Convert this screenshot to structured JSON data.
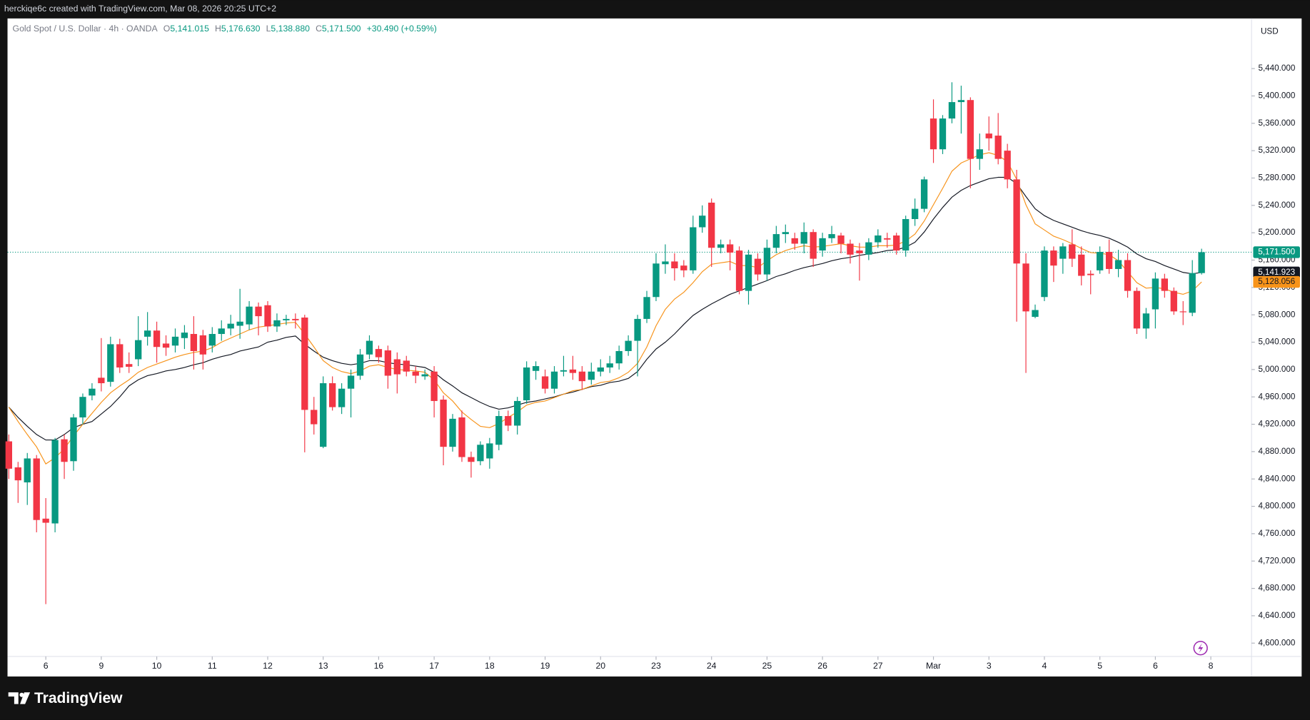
{
  "header": {
    "caption": "herckiqe6c created with TradingView.com, Mar 08, 2026 20:25 UTC+2"
  },
  "footer": {
    "brand": "TradingView"
  },
  "chart_data": {
    "type": "candlestick",
    "title": "Gold Spot / U.S. Dollar · 4h · OANDA",
    "quote": [
      {
        "key": "O",
        "value": "5,141.015"
      },
      {
        "key": "H",
        "value": "5,176.630"
      },
      {
        "key": "L",
        "value": "5,138.880"
      },
      {
        "key": "C",
        "value": "5,171.500"
      }
    ],
    "change": "+30.490 (+0.59%)",
    "currency": "USD",
    "up_color": "#089981",
    "down_color": "#f23645",
    "open": [
      4895,
      4857,
      4835,
      4870,
      4782,
      4775,
      4898,
      4866,
      4930,
      4962,
      4988,
      4982,
      5037,
      5008,
      5015,
      5048,
      5057,
      5038,
      5035,
      5046,
      5052,
      5050,
      5035,
      5052,
      5060,
      5064,
      5066,
      5092,
      5094,
      5063,
      5072,
      5074,
      5076,
      4941,
      4887,
      4980,
      4945,
      4972,
      4991,
      5022,
      5030,
      5028,
      5015,
      5013,
      4997,
      4990,
      4997,
      4956,
      4887,
      4930,
      4872,
      4866,
      4870,
      4890,
      4932,
      4918,
      4955,
      4998,
      4990,
      4972,
      4997,
      5000,
      4997,
      4985,
      4997,
      5003,
      5009,
      5027,
      5042,
      5074,
      5106,
      5154,
      5158,
      5152,
      5145,
      5208,
      5244,
      5178,
      5183,
      5174,
      5115,
      5162,
      5139,
      5178,
      5198,
      5192,
      5184,
      5201,
      5174,
      5192,
      5196,
      5184,
      5174,
      5168,
      5186,
      5192,
      5196,
      5174,
      5220,
      5235,
      5367,
      5322,
      5367,
      5391,
      5394,
      5308,
      5345,
      5342,
      5320,
      5278,
      5155,
      5077,
      5106,
      5174,
      5162,
      5183,
      5168,
      5140,
      5145,
      5172,
      5147,
      5160,
      5115,
      5060,
      5088,
      5133,
      5115,
      5085,
      5083,
      5141.015
    ],
    "high": [
      4905,
      4865,
      4878,
      4875,
      4812,
      4900,
      4905,
      4935,
      4965,
      4980,
      5046,
      5048,
      5045,
      5025,
      5078,
      5084,
      5070,
      5050,
      5060,
      5065,
      5078,
      5058,
      5062,
      5072,
      5080,
      5118,
      5100,
      5098,
      5100,
      5082,
      5080,
      5082,
      5080,
      4960,
      4990,
      4990,
      4980,
      5000,
      5030,
      5050,
      5035,
      5035,
      5025,
      5020,
      5005,
      5000,
      5005,
      4962,
      4935,
      4940,
      4880,
      4895,
      4900,
      4940,
      4940,
      4960,
      5012,
      5012,
      5000,
      5005,
      5020,
      5020,
      5005,
      5010,
      5015,
      5020,
      5035,
      5050,
      5080,
      5115,
      5170,
      5183,
      5170,
      5160,
      5225,
      5240,
      5250,
      5190,
      5190,
      5180,
      5175,
      5170,
      5190,
      5210,
      5212,
      5200,
      5215,
      5205,
      5200,
      5210,
      5200,
      5190,
      5185,
      5192,
      5205,
      5200,
      5200,
      5225,
      5250,
      5282,
      5395,
      5372,
      5420,
      5415,
      5398,
      5345,
      5370,
      5375,
      5330,
      5292,
      5170,
      5095,
      5180,
      5180,
      5185,
      5205,
      5180,
      5145,
      5180,
      5190,
      5175,
      5170,
      5120,
      5090,
      5142,
      5140,
      5120,
      5100,
      5160,
      5176.63
    ],
    "low": [
      4840,
      4805,
      4802,
      4762,
      4657,
      4762,
      4840,
      4852,
      4920,
      4955,
      4968,
      4975,
      4995,
      4995,
      5005,
      5035,
      5010,
      5020,
      5025,
      5030,
      5000,
      5000,
      5025,
      5042,
      5050,
      5045,
      5058,
      5050,
      5055,
      5055,
      5065,
      5060,
      4879,
      4905,
      4885,
      4940,
      4935,
      4930,
      4985,
      5015,
      5010,
      4972,
      4965,
      4990,
      4980,
      4985,
      4930,
      4860,
      4880,
      4865,
      4842,
      4860,
      4855,
      4882,
      4910,
      4905,
      4950,
      4985,
      4965,
      4965,
      4990,
      4985,
      4970,
      4978,
      4990,
      4995,
      5000,
      5020,
      4990,
      5068,
      5100,
      5140,
      5130,
      5135,
      5140,
      5200,
      5150,
      5170,
      5145,
      5110,
      5095,
      5130,
      5130,
      5170,
      5185,
      5175,
      5170,
      5150,
      5165,
      5185,
      5170,
      5155,
      5130,
      5160,
      5178,
      5178,
      5168,
      5165,
      5210,
      5230,
      5302,
      5315,
      5360,
      5345,
      5265,
      5292,
      5320,
      5300,
      5265,
      5070,
      4995,
      5075,
      5100,
      5128,
      5140,
      5150,
      5123,
      5110,
      5140,
      5140,
      5135,
      5105,
      5052,
      5045,
      5060,
      5105,
      5080,
      5065,
      5078,
      5138.88
    ],
    "close": [
      4855,
      4838,
      4870,
      4780,
      4776,
      4897,
      4865,
      4930,
      4960,
      4972,
      4980,
      5037,
      5003,
      5004,
      5043,
      5057,
      5033,
      5032,
      5048,
      5054,
      5027,
      5022,
      5052,
      5060,
      5067,
      5070,
      5092,
      5078,
      5063,
      5072,
      5074,
      5072,
      4941,
      4920,
      4980,
      4945,
      4972,
      4991,
      5022,
      5042,
      5018,
      4991,
      4993,
      4997,
      4991,
      4993,
      4954,
      4887,
      4928,
      4872,
      4865,
      4890,
      4892,
      4932,
      4918,
      4954,
      5003,
      5005,
      4972,
      4997,
      4999,
      4995,
      4983,
      4997,
      5003,
      5009,
      5027,
      5042,
      5074,
      5106,
      5155,
      5158,
      5148,
      5145,
      5208,
      5225,
      5178,
      5183,
      5171,
      5115,
      5168,
      5139,
      5178,
      5198,
      5201,
      5184,
      5201,
      5162,
      5192,
      5198,
      5184,
      5168,
      5170,
      5186,
      5196,
      5190,
      5174,
      5220,
      5235,
      5278,
      5322,
      5367,
      5391,
      5394,
      5308,
      5322,
      5338,
      5308,
      5278,
      5155,
      5085,
      5087,
      5174,
      5152,
      5180,
      5162,
      5137,
      5138,
      5172,
      5147,
      5160,
      5115,
      5060,
      5082,
      5133,
      5115,
      5085,
      5084,
      5141,
      5171.5
    ],
    "close_label": "5,171.500",
    "lines": [
      {
        "color": "#131722",
        "last_label": "5,141.923",
        "values": [
          4945,
          4930,
          4917,
          4905,
          4897,
          4897,
          4905,
          4915,
          4920,
          4924,
          4935,
          4946,
          4960,
          4976,
          4985,
          4991,
          4994,
          4998,
          5000,
          5003,
          5007,
          5010,
          5015,
          5019,
          5022,
          5027,
          5030,
          5033,
          5040,
          5043,
          5047,
          5049,
          5037,
          5027,
          5018,
          5013,
          5009,
          5007,
          5009,
          5013,
          5013,
          5010,
          5008,
          5007,
          5005,
          5003,
          4996,
          4985,
          4976,
          4966,
          4959,
          4952,
          4946,
          4942,
          4944,
          4948,
          4952,
          4954,
          4957,
          4960,
          4964,
          4967,
          4971,
          4975,
          4977,
          4981,
          4983,
          4987,
          4997,
          5015,
          5030,
          5040,
          5052,
          5066,
          5079,
          5088,
          5096,
          5103,
          5110,
          5115,
          5120,
          5125,
          5130,
          5136,
          5140,
          5145,
          5149,
          5152,
          5155,
          5159,
          5162,
          5164,
          5167,
          5169,
          5171,
          5174,
          5175,
          5179,
          5186,
          5201,
          5220,
          5237,
          5252,
          5262,
          5269,
          5274,
          5279,
          5281,
          5281,
          5272,
          5253,
          5235,
          5225,
          5218,
          5213,
          5208,
          5203,
          5199,
          5196,
          5192,
          5186,
          5179,
          5169,
          5162,
          5158,
          5152,
          5147,
          5142,
          5140,
          5141.923
        ]
      },
      {
        "color": "#f7931a",
        "last_label": "5,128.056",
        "values": [
          4945,
          4924,
          4905,
          4887,
          4862,
          4871,
          4884,
          4903,
          4920,
          4936,
          4952,
          4966,
          4976,
          4985,
          4996,
          5003,
          5008,
          5013,
          5018,
          5022,
          5025,
          5027,
          5032,
          5040,
          5046,
          5052,
          5058,
          5062,
          5064,
          5066,
          5068,
          5069,
          5052,
          5033,
          5013,
          5003,
          4997,
          4994,
          4998,
          5005,
          5007,
          5003,
          5000,
          4999,
          4998,
          4996,
          4985,
          4966,
          4954,
          4938,
          4927,
          4917,
          4915,
          4921,
          4930,
          4938,
          4948,
          4952,
          4954,
          4959,
          4964,
          4969,
          4971,
          4976,
          4981,
          4983,
          4988,
          4996,
          5009,
          5033,
          5064,
          5088,
          5103,
          5113,
          5127,
          5143,
          5154,
          5156,
          5158,
          5152,
          5152,
          5149,
          5159,
          5168,
          5174,
          5178,
          5181,
          5179,
          5180,
          5182,
          5184,
          5181,
          5179,
          5179,
          5181,
          5181,
          5182,
          5188,
          5198,
          5217,
          5241,
          5265,
          5290,
          5302,
          5308,
          5314,
          5317,
          5313,
          5304,
          5278,
          5241,
          5213,
          5204,
          5195,
          5190,
          5184,
          5177,
          5171,
          5170,
          5168,
          5159,
          5143,
          5127,
          5119,
          5120,
          5118,
          5113,
          5110,
          5115,
          5128.056
        ]
      }
    ],
    "xlim": [
      -0.14,
      134.4
    ],
    "xticks": [
      {
        "value": 4,
        "label": "6"
      },
      {
        "value": 10,
        "label": "9"
      },
      {
        "value": 16,
        "label": "10"
      },
      {
        "value": 22,
        "label": "11"
      },
      {
        "value": 28,
        "label": "12"
      },
      {
        "value": 34,
        "label": "13"
      },
      {
        "value": 40,
        "label": "16"
      },
      {
        "value": 46,
        "label": "17"
      },
      {
        "value": 52,
        "label": "18"
      },
      {
        "value": 58,
        "label": "19"
      },
      {
        "value": 64,
        "label": "20"
      },
      {
        "value": 70,
        "label": "23"
      },
      {
        "value": 76,
        "label": "24"
      },
      {
        "value": 82,
        "label": "25"
      },
      {
        "value": 88,
        "label": "26"
      },
      {
        "value": 94,
        "label": "27"
      },
      {
        "value": 100,
        "label": "Mar"
      },
      {
        "value": 106,
        "label": "3"
      },
      {
        "value": 112,
        "label": "4"
      },
      {
        "value": 118,
        "label": "5"
      },
      {
        "value": 124,
        "label": "6"
      },
      {
        "value": 130,
        "label": "8"
      }
    ],
    "ylim": [
      4551.2,
      5513.3
    ],
    "yticks": [
      {
        "value": 4600,
        "label": "4,600.000"
      },
      {
        "value": 4640,
        "label": "4,640.000"
      },
      {
        "value": 4680,
        "label": "4,680.000"
      },
      {
        "value": 4720,
        "label": "4,720.000"
      },
      {
        "value": 4760,
        "label": "4,760.000"
      },
      {
        "value": 4800,
        "label": "4,800.000"
      },
      {
        "value": 4840,
        "label": "4,840.000"
      },
      {
        "value": 4880,
        "label": "4,880.000"
      },
      {
        "value": 4920,
        "label": "4,920.000"
      },
      {
        "value": 4960,
        "label": "4,960.000"
      },
      {
        "value": 5000,
        "label": "5,000.000"
      },
      {
        "value": 5040,
        "label": "5,040.000"
      },
      {
        "value": 5080,
        "label": "5,080.000"
      },
      {
        "value": 5120,
        "label": "5,120.000"
      },
      {
        "value": 5160,
        "label": "5,160.000"
      },
      {
        "value": 5200,
        "label": "5,200.000"
      },
      {
        "value": 5240,
        "label": "5,240.000"
      },
      {
        "value": 5280,
        "label": "5,280.000"
      },
      {
        "value": 5320,
        "label": "5,320.000"
      },
      {
        "value": 5360,
        "label": "5,360.000"
      },
      {
        "value": 5400,
        "label": "5,400.000"
      },
      {
        "value": 5440,
        "label": "5,440.000"
      }
    ],
    "grid": false
  }
}
